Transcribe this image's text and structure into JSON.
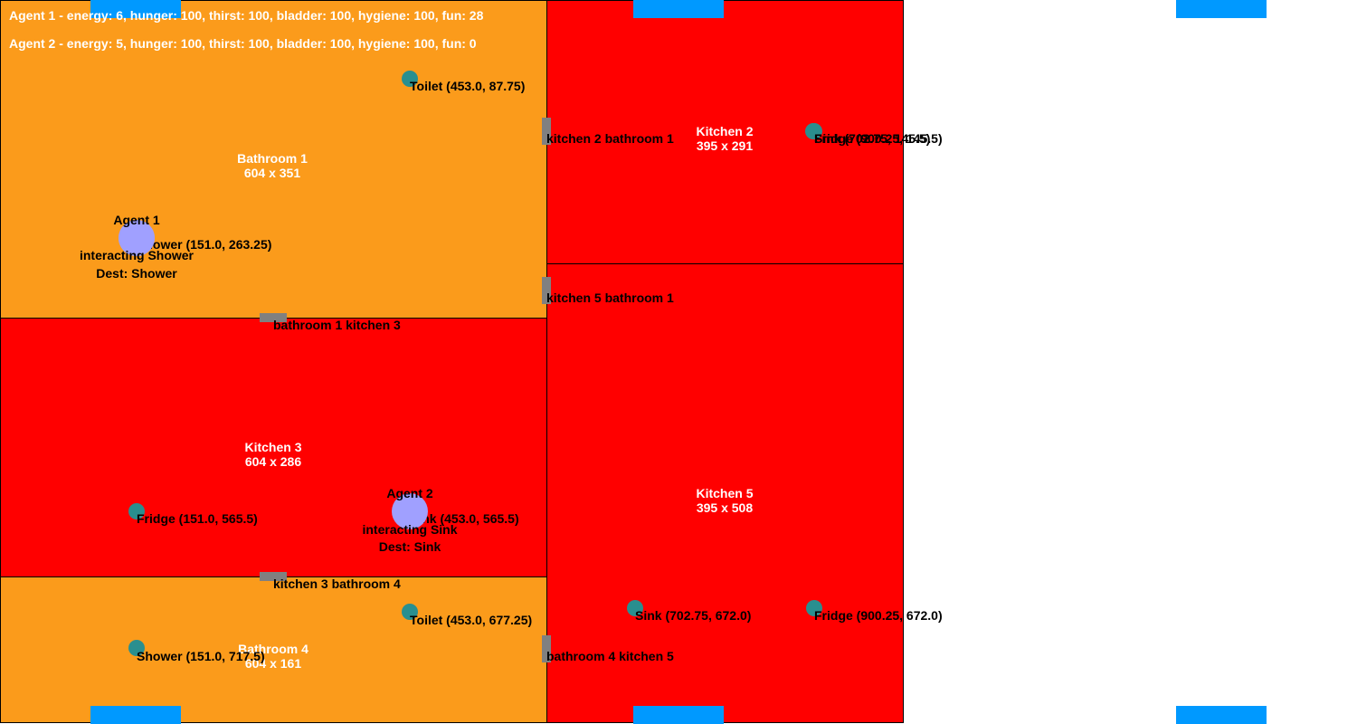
{
  "hud": {
    "agent1_status": "Agent 1 - energy: 6, hunger: 100, thirst: 100, bladder: 100, hygiene: 100, fun: 28",
    "agent2_status": "Agent 2 - energy: 5, hunger: 100, thirst: 100, bladder: 100, hygiene: 100, fun: 0"
  },
  "colors": {
    "bathroom": "#fb9b1b",
    "kitchen": "#ff0000",
    "door": "#808080",
    "object": "#2a8f8f",
    "agent": "#a0a0ff",
    "window": "#0099ff"
  },
  "rooms": {
    "bathroom1": {
      "name": "Bathroom 1",
      "size": "604 x 351"
    },
    "kitchen2": {
      "name": "Kitchen 2",
      "size": "395 x 291"
    },
    "kitchen3": {
      "name": "Kitchen 3",
      "size": "604 x 286"
    },
    "kitchen5": {
      "name": "Kitchen 5",
      "size": "395 x 508"
    },
    "bathroom4": {
      "name": "Bathroom 4",
      "size": "604 x 161"
    }
  },
  "doors": {
    "k2b1": "kitchen 2 bathroom 1",
    "k5b1": "kitchen 5 bathroom 1",
    "b1k3": "bathroom 1 kitchen 3",
    "k3b4": "kitchen 3 bathroom 4",
    "b4k5": "bathroom 4 kitchen 5"
  },
  "objects": {
    "toilet1": "Toilet (453.0, 87.75)",
    "shower1": "Shower (151.0, 263.25)",
    "sink2": "Sink (702.75, 145.5)",
    "fridge2": "Fridge (900.25, 145.5)",
    "fridge3": "Fridge (151.0, 565.5)",
    "sink3": "Sink (453.0, 565.5)",
    "toilet4": "Toilet (453.0, 677.25)",
    "shower4": "Shower (151.0, 717.5)",
    "sink5": "Sink (702.75, 672.0)",
    "fridge5": "Fridge (900.25, 672.0)"
  },
  "agents": {
    "agent1": {
      "name": "Agent 1",
      "action": "interacting Shower",
      "dest": "Dest: Shower"
    },
    "agent2": {
      "name": "Agent 2",
      "action": "interacting Sink",
      "dest": "Dest: Sink"
    }
  }
}
